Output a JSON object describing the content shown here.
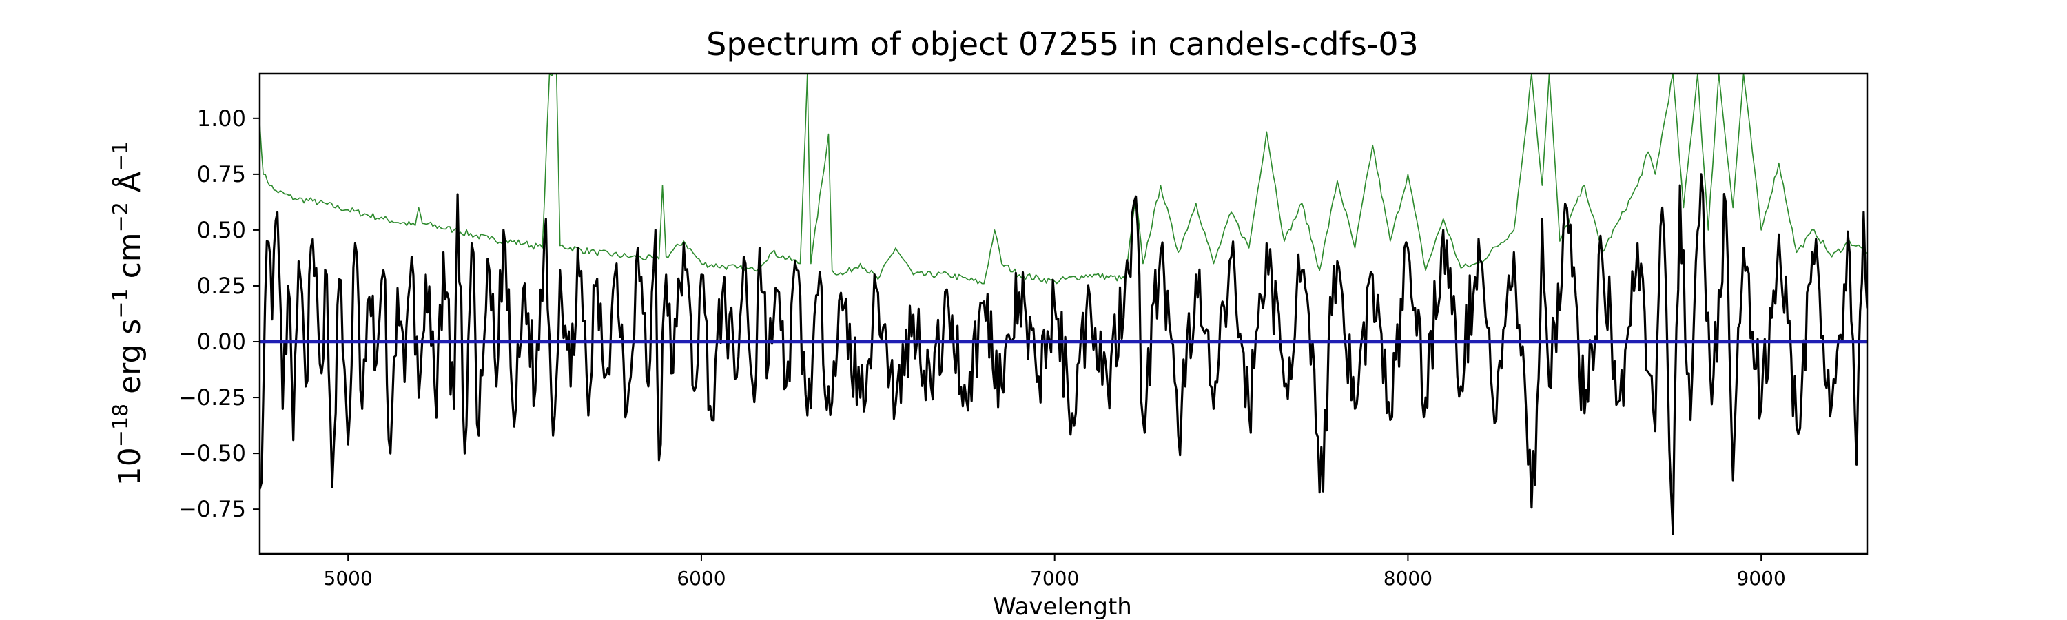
{
  "chart_data": {
    "type": "line",
    "title": "Spectrum of object 07255 in candels-cdfs-03",
    "xlabel": "Wavelength",
    "ylabel": {
      "base": "10",
      "exp": "−18",
      "unit1": " erg s",
      "exp1": "−1",
      "unit2": " cm",
      "exp2": "−2",
      "unit3": " Å",
      "exp3": "−1"
    },
    "xlim": [
      4750,
      9300
    ],
    "ylim": [
      -0.95,
      1.2
    ],
    "xticks": [
      5000,
      6000,
      7000,
      8000,
      9000
    ],
    "xtick_labels": [
      "5000",
      "6000",
      "7000",
      "8000",
      "9000"
    ],
    "yticks": [
      -0.75,
      -0.5,
      -0.25,
      0.0,
      0.25,
      0.5,
      0.75,
      1.0
    ],
    "ytick_labels": [
      "−0.75",
      "−0.50",
      "−0.25",
      "0.00",
      "0.25",
      "0.50",
      "0.75",
      "1.00"
    ],
    "grid": false,
    "legend": "none",
    "series": [
      {
        "role": "flux",
        "color": "#000000",
        "x_range": [
          4750,
          9300
        ],
        "points": [
          [
            4750,
            -0.66
          ],
          [
            4760,
            -0.25
          ],
          [
            4770,
            0.45
          ],
          [
            4785,
            0.1
          ],
          [
            4800,
            0.58
          ],
          [
            4815,
            -0.3
          ],
          [
            4830,
            0.25
          ],
          [
            4845,
            -0.44
          ],
          [
            4860,
            0.36
          ],
          [
            4880,
            -0.2
          ],
          [
            4900,
            0.46
          ],
          [
            4920,
            -0.1
          ],
          [
            4940,
            0.3
          ],
          [
            4955,
            -0.65
          ],
          [
            4975,
            0.28
          ],
          [
            5000,
            -0.46
          ],
          [
            5020,
            0.44
          ],
          [
            5040,
            -0.3
          ],
          [
            5060,
            0.2
          ],
          [
            5080,
            -0.1
          ],
          [
            5100,
            0.32
          ],
          [
            5120,
            -0.5
          ],
          [
            5140,
            0.24
          ],
          [
            5160,
            -0.18
          ],
          [
            5180,
            0.38
          ],
          [
            5200,
            -0.25
          ],
          [
            5220,
            0.3
          ],
          [
            5250,
            -0.34
          ],
          [
            5270,
            0.4
          ],
          [
            5300,
            -0.3
          ],
          [
            5310,
            0.66
          ],
          [
            5330,
            -0.5
          ],
          [
            5350,
            0.44
          ],
          [
            5370,
            -0.42
          ],
          [
            5400,
            0.32
          ],
          [
            5420,
            -0.2
          ],
          [
            5440,
            0.5
          ],
          [
            5470,
            -0.38
          ],
          [
            5500,
            0.26
          ],
          [
            5530,
            -0.22
          ],
          [
            5560,
            0.55
          ],
          [
            5580,
            -0.42
          ],
          [
            5600,
            0.32
          ],
          [
            5630,
            -0.2
          ],
          [
            5650,
            0.42
          ],
          [
            5680,
            -0.33
          ],
          [
            5700,
            0.25
          ],
          [
            5730,
            -0.15
          ],
          [
            5760,
            0.35
          ],
          [
            5790,
            -0.3
          ],
          [
            5820,
            0.42
          ],
          [
            5850,
            -0.2
          ],
          [
            5870,
            0.5
          ],
          [
            5880,
            -0.53
          ],
          [
            5900,
            0.3
          ],
          [
            5920,
            -0.14
          ],
          [
            5950,
            0.44
          ],
          [
            5980,
            -0.22
          ],
          [
            6000,
            0.3
          ],
          [
            6030,
            -0.35
          ],
          [
            6060,
            0.22
          ],
          [
            6100,
            -0.16
          ],
          [
            6120,
            0.38
          ],
          [
            6150,
            -0.27
          ],
          [
            6165,
            0.42
          ],
          [
            6190,
            -0.1
          ],
          [
            6210,
            0.24
          ],
          [
            6240,
            -0.2
          ],
          [
            6270,
            0.32
          ],
          [
            6300,
            -0.33
          ],
          [
            6330,
            0.21
          ],
          [
            6360,
            -0.2
          ],
          [
            6400,
            0.14
          ],
          [
            6450,
            -0.25
          ],
          [
            6500,
            0.22
          ],
          [
            6550,
            -0.28
          ],
          [
            6600,
            0.12
          ],
          [
            6650,
            -0.2
          ],
          [
            6700,
            0.15
          ],
          [
            6750,
            -0.26
          ],
          [
            6800,
            0.18
          ],
          [
            6850,
            -0.2
          ],
          [
            6900,
            0.22
          ],
          [
            6950,
            -0.18
          ],
          [
            7000,
            0.16
          ],
          [
            7050,
            -0.32
          ],
          [
            7100,
            0.2
          ],
          [
            7150,
            -0.2
          ],
          [
            7200,
            0.28
          ],
          [
            7230,
            0.65
          ],
          [
            7250,
            -0.35
          ],
          [
            7300,
            0.4
          ],
          [
            7350,
            -0.42
          ],
          [
            7400,
            0.3
          ],
          [
            7450,
            -0.3
          ],
          [
            7500,
            0.38
          ],
          [
            7550,
            -0.32
          ],
          [
            7600,
            0.44
          ],
          [
            7650,
            -0.2
          ],
          [
            7700,
            0.32
          ],
          [
            7760,
            -0.67
          ],
          [
            7780,
            0.2
          ],
          [
            7800,
            0.36
          ],
          [
            7850,
            -0.3
          ],
          [
            7900,
            0.3
          ],
          [
            7950,
            -0.35
          ],
          [
            8000,
            0.42
          ],
          [
            8050,
            -0.25
          ],
          [
            8100,
            0.5
          ],
          [
            8150,
            -0.2
          ],
          [
            8200,
            0.46
          ],
          [
            8250,
            -0.35
          ],
          [
            8300,
            0.4
          ],
          [
            8340,
            -0.55
          ],
          [
            8360,
            -0.64
          ],
          [
            8380,
            0.55
          ],
          [
            8400,
            -0.2
          ],
          [
            8450,
            0.6
          ],
          [
            8500,
            -0.32
          ],
          [
            8550,
            0.38
          ],
          [
            8600,
            -0.26
          ],
          [
            8650,
            0.44
          ],
          [
            8700,
            -0.4
          ],
          [
            8720,
            0.6
          ],
          [
            8750,
            -0.86
          ],
          [
            8770,
            0.7
          ],
          [
            8800,
            -0.35
          ],
          [
            8830,
            0.75
          ],
          [
            8860,
            -0.28
          ],
          [
            8900,
            0.62
          ],
          [
            8920,
            -0.62
          ],
          [
            8950,
            0.42
          ],
          [
            9000,
            -0.3
          ],
          [
            9050,
            0.48
          ],
          [
            9100,
            -0.38
          ],
          [
            9150,
            0.35
          ],
          [
            9200,
            -0.28
          ],
          [
            9250,
            0.4
          ],
          [
            9270,
            -0.55
          ],
          [
            9290,
            0.58
          ],
          [
            9300,
            0.15
          ]
        ]
      },
      {
        "role": "error",
        "color": "#2e8b2e",
        "x_range": [
          4750,
          9300
        ],
        "points": [
          [
            4750,
            0.98
          ],
          [
            4760,
            0.75
          ],
          [
            4790,
            0.68
          ],
          [
            4850,
            0.64
          ],
          [
            4900,
            0.63
          ],
          [
            5000,
            0.59
          ],
          [
            5100,
            0.55
          ],
          [
            5190,
            0.52
          ],
          [
            5200,
            0.6
          ],
          [
            5210,
            0.53
          ],
          [
            5300,
            0.5
          ],
          [
            5400,
            0.46
          ],
          [
            5500,
            0.44
          ],
          [
            5550,
            0.42
          ],
          [
            5570,
            1.2
          ],
          [
            5590,
            1.2
          ],
          [
            5600,
            0.43
          ],
          [
            5700,
            0.4
          ],
          [
            5800,
            0.38
          ],
          [
            5880,
            0.37
          ],
          [
            5890,
            0.7
          ],
          [
            5900,
            0.38
          ],
          [
            5950,
            0.45
          ],
          [
            6000,
            0.35
          ],
          [
            6100,
            0.33
          ],
          [
            6150,
            0.32
          ],
          [
            6200,
            0.4
          ],
          [
            6280,
            0.35
          ],
          [
            6300,
            1.2
          ],
          [
            6310,
            0.35
          ],
          [
            6360,
            0.93
          ],
          [
            6370,
            0.32
          ],
          [
            6400,
            0.3
          ],
          [
            6450,
            0.35
          ],
          [
            6500,
            0.28
          ],
          [
            6550,
            0.42
          ],
          [
            6600,
            0.3
          ],
          [
            6700,
            0.3
          ],
          [
            6800,
            0.26
          ],
          [
            6830,
            0.5
          ],
          [
            6850,
            0.35
          ],
          [
            6900,
            0.3
          ],
          [
            7000,
            0.27
          ],
          [
            7100,
            0.3
          ],
          [
            7200,
            0.28
          ],
          [
            7230,
            0.65
          ],
          [
            7250,
            0.35
          ],
          [
            7300,
            0.7
          ],
          [
            7350,
            0.4
          ],
          [
            7400,
            0.62
          ],
          [
            7450,
            0.35
          ],
          [
            7500,
            0.58
          ],
          [
            7550,
            0.42
          ],
          [
            7600,
            0.94
          ],
          [
            7650,
            0.45
          ],
          [
            7700,
            0.62
          ],
          [
            7750,
            0.32
          ],
          [
            7800,
            0.72
          ],
          [
            7850,
            0.42
          ],
          [
            7900,
            0.88
          ],
          [
            7950,
            0.45
          ],
          [
            8000,
            0.75
          ],
          [
            8050,
            0.32
          ],
          [
            8100,
            0.55
          ],
          [
            8150,
            0.33
          ],
          [
            8200,
            0.35
          ],
          [
            8300,
            0.5
          ],
          [
            8330,
            0.9
          ],
          [
            8350,
            1.2
          ],
          [
            8380,
            0.7
          ],
          [
            8400,
            1.2
          ],
          [
            8430,
            0.45
          ],
          [
            8500,
            0.7
          ],
          [
            8550,
            0.4
          ],
          [
            8600,
            0.55
          ],
          [
            8650,
            0.7
          ],
          [
            8680,
            0.85
          ],
          [
            8700,
            0.75
          ],
          [
            8750,
            1.2
          ],
          [
            8780,
            0.6
          ],
          [
            8820,
            1.2
          ],
          [
            8850,
            0.5
          ],
          [
            8880,
            1.2
          ],
          [
            8920,
            0.6
          ],
          [
            8950,
            1.2
          ],
          [
            9000,
            0.5
          ],
          [
            9050,
            0.8
          ],
          [
            9100,
            0.4
          ],
          [
            9150,
            0.5
          ],
          [
            9200,
            0.38
          ],
          [
            9250,
            0.45
          ],
          [
            9300,
            0.4
          ]
        ]
      },
      {
        "role": "model",
        "color": "#1f1fb4",
        "points": [
          [
            4750,
            0.0
          ],
          [
            9300,
            0.0
          ]
        ]
      }
    ]
  }
}
